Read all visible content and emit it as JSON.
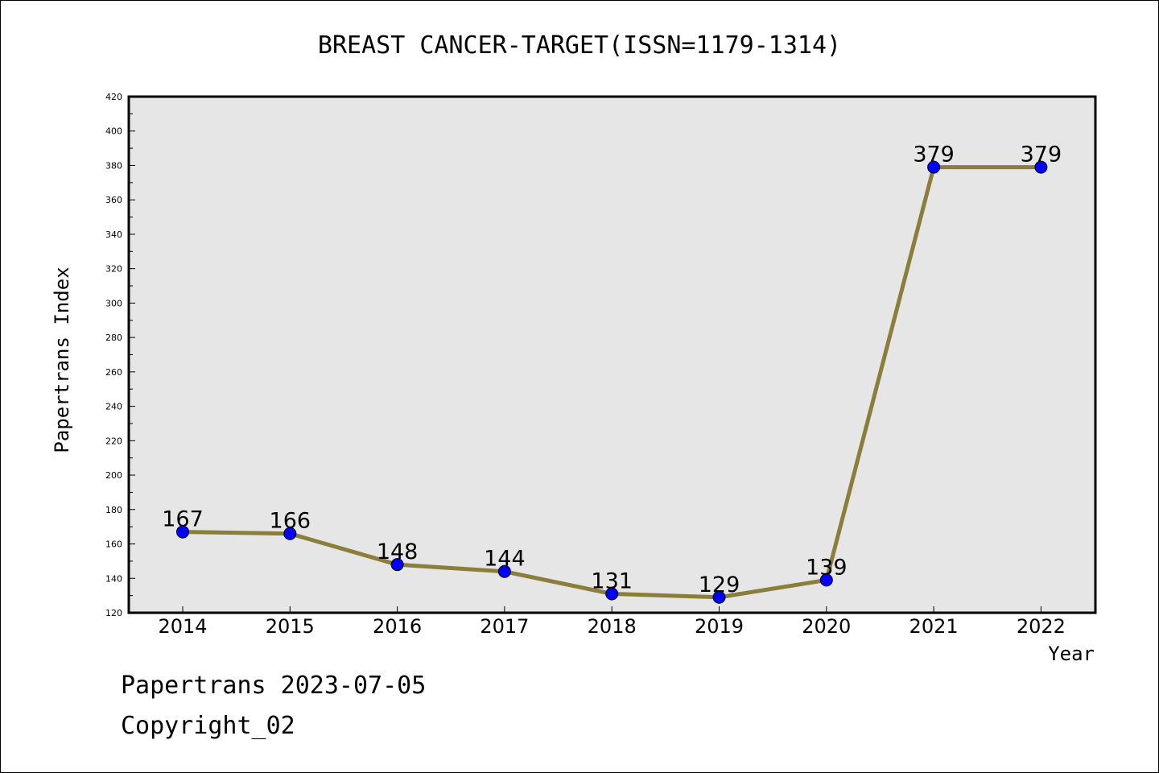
{
  "chart_data": {
    "type": "line",
    "title": "BREAST CANCER-TARGET(ISSN=1179-1314)",
    "xlabel": "Year",
    "ylabel": "Papertrans Index",
    "x": [
      "2014",
      "2015",
      "2016",
      "2017",
      "2018",
      "2019",
      "2020",
      "2021",
      "2022"
    ],
    "series": [
      {
        "values": [
          167,
          166,
          148,
          144,
          131,
          129,
          139,
          379,
          379
        ]
      }
    ],
    "data_labels": [
      "167",
      "166",
      "148",
      "144",
      "131",
      "129",
      "139",
      "379",
      "379"
    ],
    "ylim": [
      120,
      420
    ],
    "yticks": [
      "120",
      "140",
      "160",
      "180",
      "200",
      "220",
      "240",
      "260",
      "280",
      "300",
      "320",
      "340",
      "360",
      "380",
      "400",
      "420"
    ],
    "grid": false,
    "colors": {
      "line": "#8B7D3A",
      "marker": "#0000FF",
      "plot_bg": "#E6E6E6"
    }
  },
  "footer": {
    "date_line": "Papertrans 2023-07-05",
    "copyright": "Copyright_02"
  }
}
